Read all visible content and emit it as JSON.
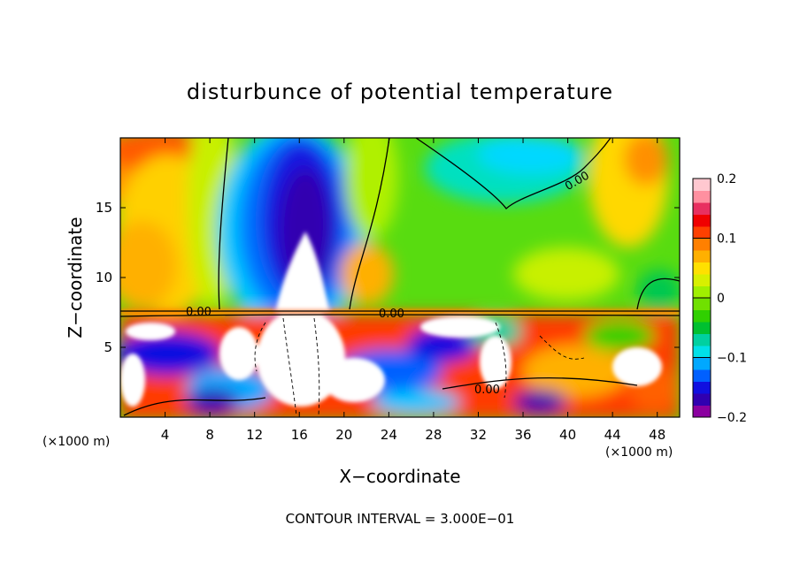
{
  "chart_data": {
    "type": "heatmap",
    "title": "disturbunce of potential temperature",
    "xlabel": "X−coordinate",
    "ylabel": "Z−coordinate",
    "x_unit_left": "(×1000 m)",
    "x_unit_right": "(×1000 m)",
    "xlim": [
      0,
      50
    ],
    "ylim": [
      0,
      20
    ],
    "xticks": [
      "4",
      "8",
      "12",
      "16",
      "20",
      "24",
      "28",
      "32",
      "36",
      "40",
      "44",
      "48"
    ],
    "yticks": [
      "5",
      "10",
      "15"
    ],
    "footer": "CONTOUR INTERVAL = 3.000E−01",
    "contour_labels": [
      "0.00",
      "0.00",
      "0.00",
      "0.00"
    ],
    "colorbar": {
      "min": -0.2,
      "max": 0.2,
      "tick_labels": [
        "0.2",
        "0.1",
        "0",
        "−0.1",
        "−0.2"
      ],
      "colors": [
        "#8b00a0",
        "#3000b0",
        "#1010e0",
        "#0060ff",
        "#00a8ff",
        "#00e0e8",
        "#00d0a0",
        "#00c030",
        "#30d000",
        "#70e000",
        "#a0f000",
        "#d8f000",
        "#ffe000",
        "#ffb000",
        "#ff8000",
        "#ff4000",
        "#f00000",
        "#e83060",
        "#ff90a0",
        "#ffc8d0"
      ]
    }
  }
}
